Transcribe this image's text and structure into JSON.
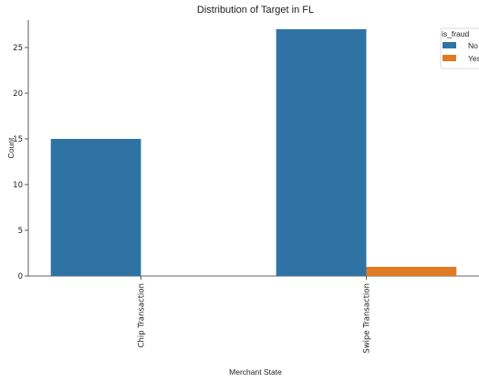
{
  "chart_data": {
    "type": "bar",
    "title": "Distribution of Target in FL",
    "xlabel": "Merchant State",
    "ylabel": "Count",
    "categories": [
      "Chip Transaction",
      "Swipe Transaction"
    ],
    "series": [
      {
        "name": "No",
        "values": [
          15,
          27
        ],
        "color": "#2e73a4"
      },
      {
        "name": "Yes",
        "values": [
          0,
          1
        ],
        "color": "#e07b24"
      }
    ],
    "ylim": [
      0,
      28
    ],
    "yticks": [
      0,
      5,
      10,
      15,
      20,
      25
    ],
    "legend": {
      "title": "is_fraud",
      "position": "top-right"
    },
    "grid": false
  }
}
